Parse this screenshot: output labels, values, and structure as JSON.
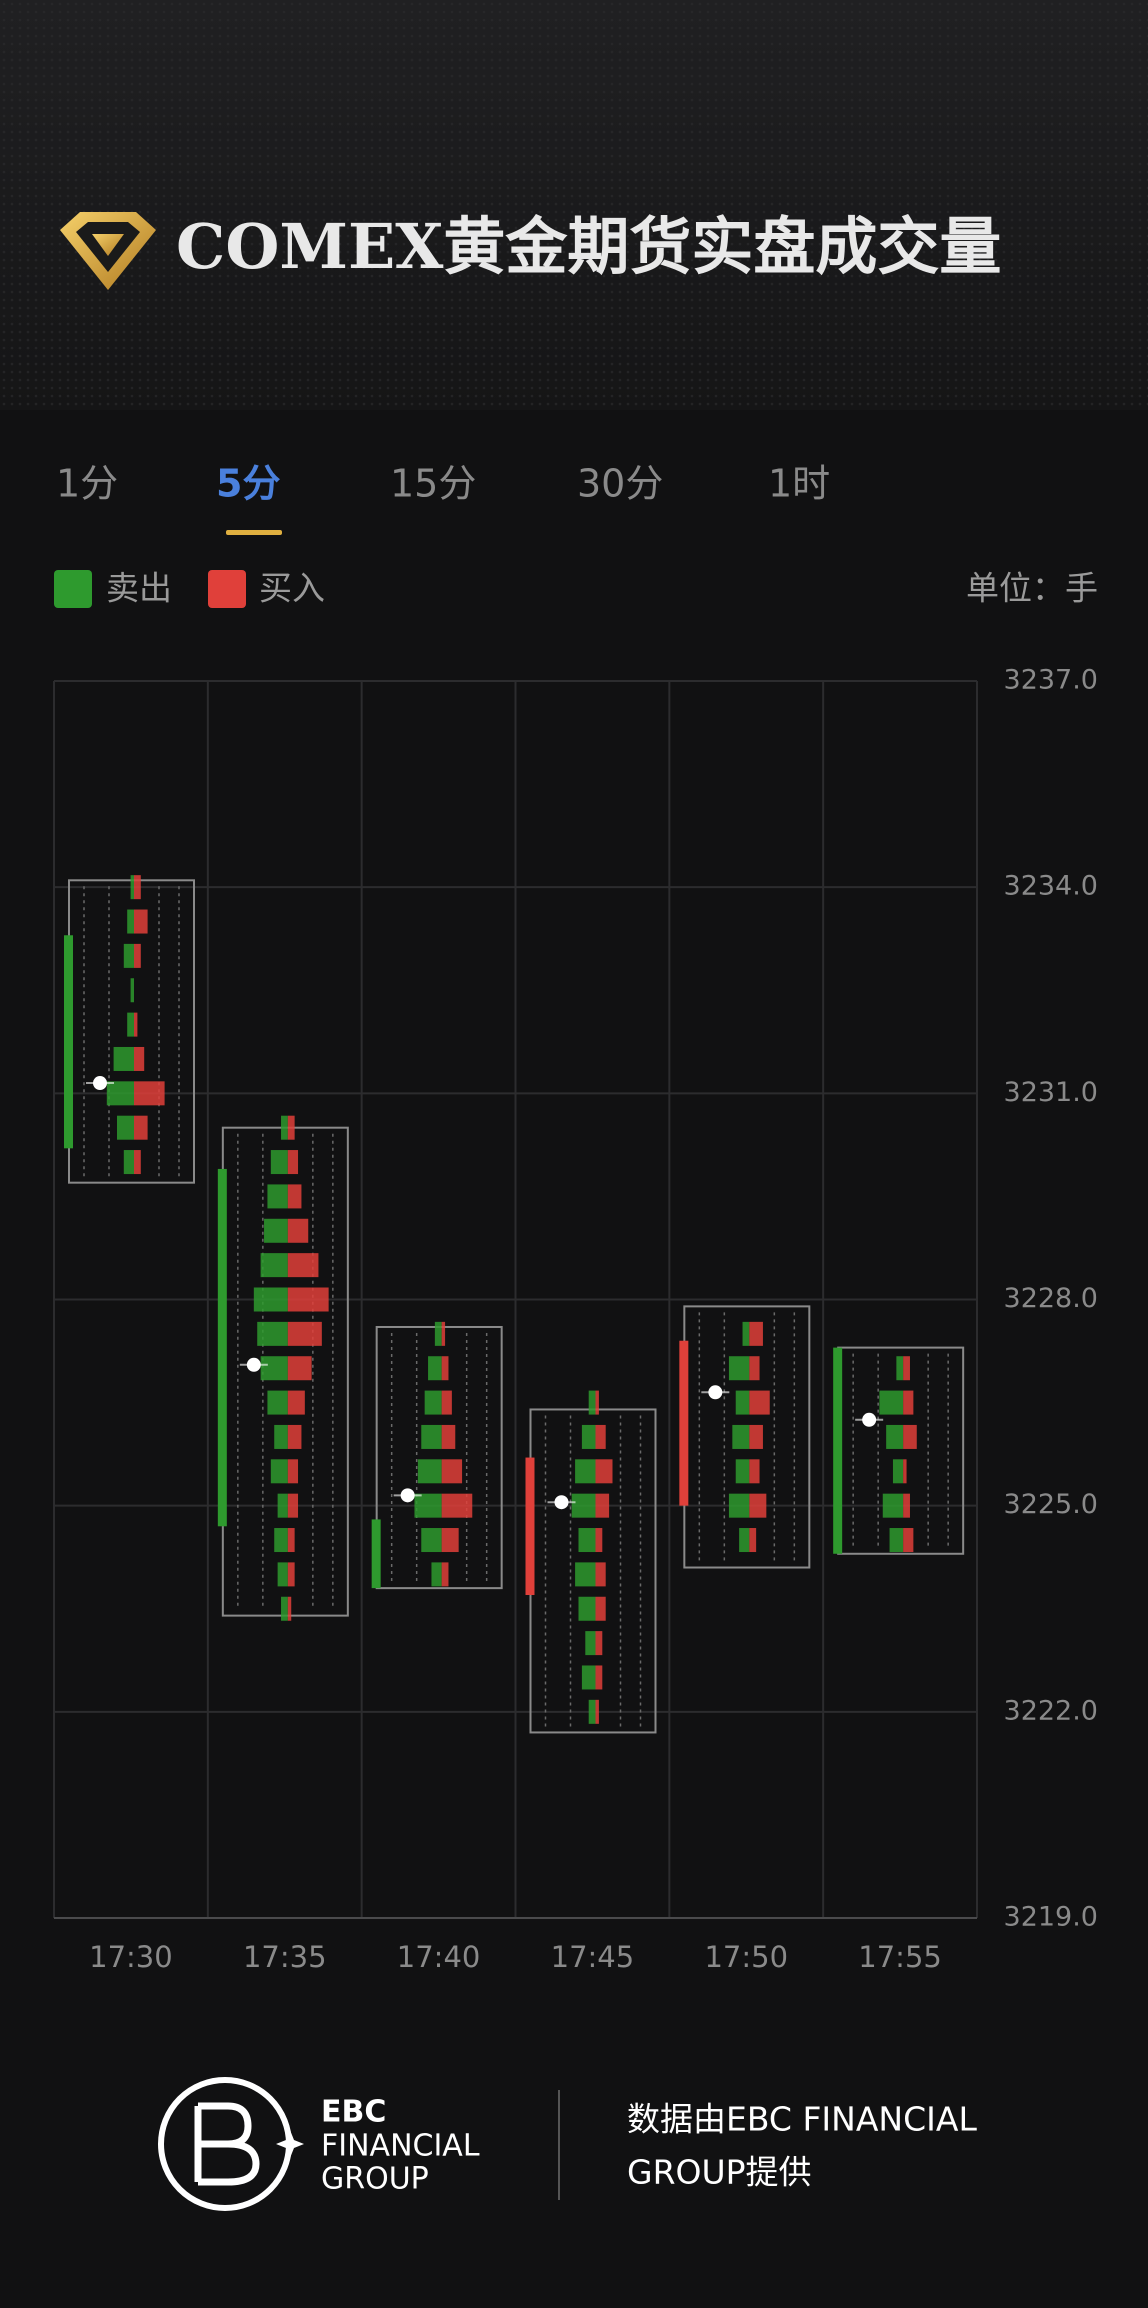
{
  "header": {
    "title": "COMEX黄金期货实盘成交量"
  },
  "tabs": {
    "items": [
      "1分",
      "5分",
      "15分",
      "30分",
      "1时"
    ],
    "active": 1
  },
  "unit": "单位：手",
  "chart_data": {
    "type": "footprint",
    "categories": [
      "17:30",
      "17:35",
      "17:40",
      "17:45",
      "17:50",
      "17:55"
    ],
    "series": [
      {
        "name": "卖出",
        "color": "#2e9a2e"
      },
      {
        "name": "买入",
        "color": "#e0403a"
      }
    ],
    "open": [
      3233.3,
      3229.9,
      3224.8,
      3223.7,
      3225.0,
      3227.3
    ],
    "close": [
      3230.2,
      3224.7,
      3223.8,
      3225.7,
      3227.4,
      3224.3
    ],
    "high": [
      3234.1,
      3230.5,
      3227.6,
      3226.4,
      3227.9,
      3227.3
    ],
    "low": [
      3229.7,
      3223.4,
      3223.8,
      3221.7,
      3224.1,
      3224.3
    ],
    "poc": [
      3231.15,
      3227.05,
      3225.15,
      3225.05,
      3226.65,
      3226.25
    ],
    "profiles": [
      {
        "levels": [
          3230,
          3230.5,
          3231,
          3231.5,
          3232,
          3232.5,
          3233,
          3233.5,
          3234
        ],
        "sell": [
          3,
          5,
          8,
          6,
          2,
          1,
          3,
          2,
          1
        ],
        "buy": [
          2,
          4,
          9,
          3,
          1,
          0,
          2,
          4,
          2
        ]
      },
      {
        "levels": [
          3223.5,
          3224,
          3224.5,
          3225,
          3225.5,
          3226,
          3226.5,
          3227,
          3227.5,
          3228,
          3228.5,
          3229,
          3229.5,
          3230,
          3230.5
        ],
        "sell": [
          2,
          3,
          4,
          3,
          5,
          4,
          6,
          8,
          9,
          10,
          8,
          7,
          6,
          5,
          2
        ],
        "buy": [
          1,
          2,
          2,
          3,
          3,
          4,
          5,
          7,
          10,
          12,
          9,
          6,
          4,
          3,
          2
        ]
      },
      {
        "levels": [
          3224,
          3224.5,
          3225,
          3225.5,
          3226,
          3226.5,
          3227,
          3227.5
        ],
        "sell": [
          3,
          6,
          8,
          7,
          6,
          5,
          4,
          2
        ],
        "buy": [
          2,
          5,
          9,
          6,
          4,
          3,
          2,
          1
        ]
      },
      {
        "levels": [
          3222,
          3222.5,
          3223,
          3223.5,
          3224,
          3224.5,
          3225,
          3225.5,
          3226,
          3226.5
        ],
        "sell": [
          2,
          4,
          3,
          5,
          6,
          5,
          7,
          6,
          4,
          2
        ],
        "buy": [
          1,
          2,
          2,
          3,
          3,
          2,
          4,
          5,
          3,
          1
        ]
      },
      {
        "levels": [
          3224.5,
          3225,
          3225.5,
          3226,
          3226.5,
          3227,
          3227.5
        ],
        "sell": [
          3,
          6,
          4,
          5,
          4,
          6,
          2
        ],
        "buy": [
          2,
          5,
          3,
          4,
          6,
          3,
          4
        ]
      },
      {
        "levels": [
          3224.5,
          3225,
          3225.5,
          3226,
          3226.5,
          3227
        ],
        "sell": [
          4,
          6,
          3,
          5,
          7,
          2
        ],
        "buy": [
          3,
          2,
          1,
          4,
          3,
          2
        ]
      }
    ],
    "ylim": [
      3219,
      3237
    ],
    "yticks": [
      {
        "value": 3219,
        "label": "3219.0"
      },
      {
        "value": 3222,
        "label": "3222.0"
      },
      {
        "value": 3225,
        "label": "3225.0"
      },
      {
        "value": 3228,
        "label": "3228.0"
      },
      {
        "value": 3231,
        "label": "3231.0"
      },
      {
        "value": 3234,
        "label": "3234.0"
      },
      {
        "value": 3237,
        "label": "3237.0"
      }
    ],
    "grid": true,
    "poc_color": "#ffffff",
    "box_color": "#8a8a8a"
  },
  "footer": {
    "brand": [
      "EBC",
      "FINANCIAL",
      "GROUP"
    ],
    "note": [
      "数据由EBC FINANCIAL",
      "GROUP提供"
    ]
  }
}
